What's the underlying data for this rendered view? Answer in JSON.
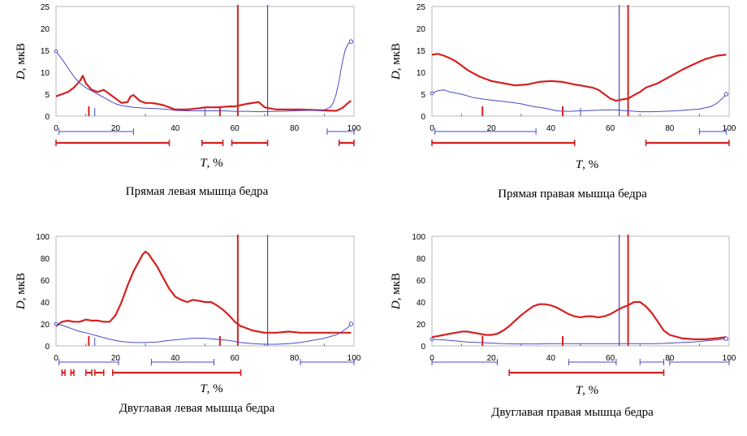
{
  "chart_data": [
    {
      "type": "line",
      "title": "Прямая левая мышца бедра",
      "ylabel_var": "D",
      "ylabel_unit": ", мкВ",
      "xlabel_var": "T",
      "xlabel_unit": ", %",
      "xlim": [
        0,
        100
      ],
      "ylim": [
        0,
        25
      ],
      "xticks": [
        "0",
        "20",
        "40",
        "60",
        "80",
        "100"
      ],
      "yticks": [
        "0",
        "5",
        "10",
        "15",
        "20",
        "25"
      ],
      "colors": {
        "red": "#d42020",
        "blue": "#4a4ac8"
      },
      "series": [
        {
          "name": "red",
          "x": [
            0,
            2,
            4,
            6,
            8,
            9,
            10,
            12,
            14,
            16,
            18,
            20,
            22,
            24,
            25,
            26,
            28,
            30,
            32,
            34,
            36,
            38,
            40,
            44,
            48,
            50,
            54,
            58,
            60,
            62,
            64,
            66,
            68,
            70,
            74,
            78,
            82,
            86,
            90,
            94,
            96,
            98,
            99
          ],
          "y": [
            4.5,
            5,
            5.5,
            6.5,
            8,
            9.2,
            7.5,
            6,
            5.5,
            6,
            5,
            4,
            3,
            3.2,
            4.5,
            4.8,
            3.5,
            3,
            3,
            2.8,
            2.5,
            2,
            1.5,
            1.5,
            1.8,
            2,
            2,
            2.2,
            2.2,
            2.5,
            2.8,
            3,
            3.2,
            2,
            1.5,
            1.5,
            1.5,
            1.4,
            1.3,
            1.2,
            1.8,
            3,
            3.5
          ]
        },
        {
          "name": "blue",
          "x": [
            0,
            2,
            4,
            6,
            8,
            10,
            14,
            18,
            20,
            22,
            24,
            26,
            28,
            30,
            34,
            38,
            40,
            44,
            50,
            56,
            60,
            64,
            68,
            72,
            76,
            80,
            84,
            88,
            90,
            92,
            93,
            94,
            95,
            96,
            97,
            98,
            99
          ],
          "y": [
            14.8,
            13,
            11,
            9,
            7.5,
            6.5,
            5,
            3.5,
            2.8,
            2.4,
            2.2,
            2,
            1.9,
            1.8,
            1.7,
            1.5,
            1.3,
            1.2,
            1.2,
            1.2,
            1.1,
            1.1,
            1,
            1.05,
            1.1,
            1.2,
            1.3,
            1.3,
            1.4,
            2,
            3,
            5,
            8,
            12,
            15,
            16.5,
            17
          ]
        }
      ],
      "red_vlines": [
        61
      ],
      "blue_vlines": [
        71
      ],
      "red_onset_ticks": [
        11,
        55
      ],
      "blue_onset_ticks": [
        13,
        50
      ],
      "blue_segments": [
        [
          1,
          26
        ],
        [
          91,
          100
        ]
      ],
      "red_segments": [
        [
          0,
          38
        ],
        [
          49,
          56
        ],
        [
          59,
          71
        ],
        [
          95,
          100
        ]
      ]
    },
    {
      "type": "line",
      "title": "Прямая правая мышца бедра",
      "ylabel_var": "D",
      "ylabel_unit": ", мкВ",
      "xlabel_var": "T",
      "xlabel_unit": ", %",
      "xlim": [
        0,
        100
      ],
      "ylim": [
        0,
        25
      ],
      "xticks": [
        "0",
        "20",
        "40",
        "60",
        "80",
        "100"
      ],
      "yticks": [
        "0",
        "5",
        "10",
        "15",
        "20",
        "25"
      ],
      "colors": {
        "red": "#d42020",
        "blue": "#4a4ac8"
      },
      "series": [
        {
          "name": "red",
          "x": [
            0,
            2,
            4,
            6,
            8,
            10,
            12,
            16,
            20,
            24,
            28,
            32,
            36,
            40,
            44,
            48,
            50,
            54,
            56,
            58,
            60,
            62,
            64,
            66,
            68,
            70,
            72,
            76,
            80,
            84,
            88,
            92,
            96,
            99
          ],
          "y": [
            14,
            14.2,
            13.8,
            13.2,
            12.5,
            11.5,
            10.5,
            9,
            8,
            7.5,
            7,
            7.2,
            7.8,
            8,
            7.8,
            7.2,
            7,
            6.5,
            6,
            5,
            4,
            3.5,
            3.8,
            4,
            4.8,
            5.5,
            6.5,
            7.5,
            9,
            10.5,
            11.8,
            13,
            13.8,
            14
          ]
        },
        {
          "name": "blue",
          "x": [
            0,
            2,
            4,
            6,
            10,
            14,
            18,
            22,
            26,
            30,
            34,
            38,
            42,
            46,
            50,
            54,
            58,
            62,
            66,
            70,
            74,
            78,
            82,
            86,
            90,
            94,
            96,
            98,
            99
          ],
          "y": [
            5.2,
            5.8,
            6,
            5.5,
            5,
            4.2,
            3.8,
            3.5,
            3.2,
            2.8,
            2.2,
            1.8,
            1.2,
            1.1,
            1.2,
            1.3,
            1.4,
            1.4,
            1.2,
            1,
            1,
            1.1,
            1.2,
            1.4,
            1.6,
            2.2,
            3,
            4.2,
            5
          ]
        }
      ],
      "red_vlines": [
        66
      ],
      "blue_vlines": [
        63
      ],
      "red_onset_ticks": [
        17,
        44
      ],
      "blue_onset_ticks": [
        50
      ],
      "blue_segments": [
        [
          1,
          35
        ],
        [
          90,
          99
        ]
      ],
      "red_segments": [
        [
          0,
          48
        ],
        [
          72,
          100
        ]
      ]
    },
    {
      "type": "line",
      "title": "Двуглавая левая мышца бедра",
      "ylabel_var": "D",
      "ylabel_unit": ", мкВ",
      "xlabel_var": "T",
      "xlabel_unit": ", %",
      "xlim": [
        0,
        100
      ],
      "ylim": [
        0,
        100
      ],
      "xticks": [
        "0",
        "20",
        "40",
        "60",
        "80",
        "100"
      ],
      "yticks": [
        "0",
        "20",
        "40",
        "60",
        "80",
        "100"
      ],
      "colors": {
        "red": "#d42020",
        "blue": "#4a4ac8"
      },
      "series": [
        {
          "name": "red",
          "x": [
            0,
            2,
            4,
            6,
            8,
            10,
            12,
            14,
            16,
            18,
            20,
            22,
            24,
            26,
            28,
            29,
            30,
            31,
            32,
            34,
            36,
            38,
            40,
            42,
            44,
            46,
            48,
            50,
            52,
            54,
            56,
            58,
            60,
            62,
            64,
            66,
            70,
            74,
            78,
            82,
            86,
            90,
            94,
            99
          ],
          "y": [
            18,
            22,
            23,
            22,
            22,
            24,
            23,
            23,
            22,
            22,
            28,
            40,
            55,
            68,
            78,
            83,
            86,
            84,
            80,
            72,
            62,
            52,
            45,
            42,
            40,
            42,
            41,
            40,
            40,
            37,
            33,
            28,
            22,
            18,
            16,
            14,
            12,
            12,
            13,
            12,
            12,
            12,
            12,
            12
          ]
        },
        {
          "name": "blue",
          "x": [
            0,
            2,
            4,
            6,
            8,
            10,
            14,
            18,
            22,
            26,
            30,
            34,
            38,
            42,
            46,
            50,
            54,
            58,
            62,
            66,
            70,
            74,
            78,
            82,
            86,
            90,
            94,
            96,
            98,
            99
          ],
          "y": [
            20,
            19,
            17,
            15,
            13,
            12,
            9,
            6,
            4,
            3,
            3,
            3.5,
            5,
            6,
            7,
            7,
            6,
            5,
            3,
            2,
            1.5,
            1.5,
            2,
            3,
            5,
            7,
            10,
            13,
            17,
            20
          ]
        }
      ],
      "red_vlines": [
        61
      ],
      "blue_vlines": [
        71
      ],
      "red_onset_ticks": [
        11,
        55
      ],
      "blue_onset_ticks": [
        13
      ],
      "blue_segments": [
        [
          1,
          21
        ],
        [
          32,
          53
        ],
        [
          82,
          100
        ]
      ],
      "red_segments": [
        [
          2,
          3
        ],
        [
          5,
          6
        ],
        [
          10,
          12
        ],
        [
          13,
          16
        ],
        [
          19,
          62
        ]
      ]
    },
    {
      "type": "line",
      "title": "Двуглавая правая мышца бедра",
      "ylabel_var": "D",
      "ylabel_unit": ", мкВ",
      "xlabel_var": "T",
      "xlabel_unit": ", %",
      "xlim": [
        0,
        100
      ],
      "ylim": [
        0,
        100
      ],
      "xticks": [
        "0",
        "20",
        "40",
        "60",
        "80",
        "100"
      ],
      "yticks": [
        "0",
        "20",
        "40",
        "60",
        "80",
        "100"
      ],
      "colors": {
        "red": "#d42020",
        "blue": "#4a4ac8"
      },
      "series": [
        {
          "name": "red",
          "x": [
            0,
            2,
            4,
            6,
            8,
            10,
            12,
            14,
            16,
            18,
            20,
            22,
            24,
            26,
            28,
            30,
            32,
            34,
            36,
            38,
            40,
            42,
            44,
            46,
            48,
            50,
            52,
            54,
            56,
            58,
            60,
            62,
            64,
            66,
            68,
            70,
            72,
            74,
            76,
            78,
            80,
            84,
            88,
            92,
            96,
            99
          ],
          "y": [
            8,
            9,
            10,
            11,
            12,
            13,
            13,
            12,
            11,
            10,
            10,
            11,
            14,
            18,
            23,
            28,
            32,
            36,
            38,
            38,
            37,
            35,
            32,
            29,
            27,
            26,
            27,
            27,
            26,
            27,
            29,
            32,
            35,
            37,
            40,
            40,
            36,
            30,
            22,
            14,
            10,
            7,
            6,
            6,
            7,
            8
          ]
        },
        {
          "name": "blue",
          "x": [
            0,
            4,
            8,
            12,
            16,
            20,
            24,
            28,
            32,
            36,
            40,
            44,
            48,
            52,
            56,
            60,
            64,
            68,
            72,
            76,
            80,
            84,
            88,
            92,
            96,
            99
          ],
          "y": [
            6,
            5.5,
            4.5,
            3.5,
            3,
            2.5,
            2,
            1.8,
            1.8,
            1.8,
            2,
            2,
            2,
            2,
            2,
            2,
            2,
            2,
            2,
            2,
            2.5,
            3,
            3.5,
            4.5,
            5.5,
            6.5
          ]
        }
      ],
      "red_vlines": [
        66
      ],
      "blue_vlines": [
        63
      ],
      "red_onset_ticks": [
        17,
        44
      ],
      "blue_onset_ticks": [],
      "blue_segments": [
        [
          0,
          22
        ],
        [
          46,
          62
        ],
        [
          70,
          78
        ],
        [
          80,
          100
        ]
      ],
      "red_segments": [
        [
          26,
          78
        ]
      ]
    }
  ]
}
